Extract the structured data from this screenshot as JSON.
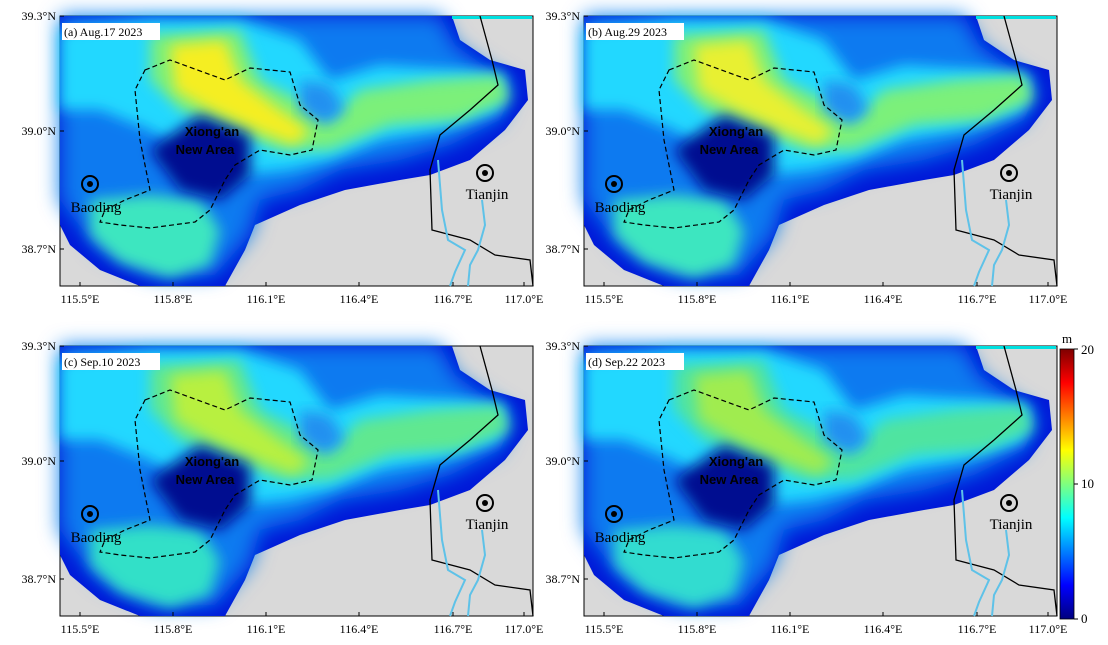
{
  "panels": [
    {
      "label": "(a) Aug.17 2023",
      "intensity": 1.0
    },
    {
      "label": "(b) Aug.29 2023",
      "intensity": 0.94
    },
    {
      "label": "(c) Sep.10 2023",
      "intensity": 0.86
    },
    {
      "label": "(d) Sep.22 2023",
      "intensity": 0.82
    }
  ],
  "axes": {
    "lon_ticks": [
      "115.5°E",
      "115.8°E",
      "116.1°E",
      "116.4°E",
      "116.7°E",
      "117.0°E"
    ],
    "lat_ticks": [
      "39.3°N",
      "39.0°N",
      "38.7°N"
    ]
  },
  "places": {
    "xiongan_line1": "Xiong'an",
    "xiongan_line2": "New Area",
    "baoding": "Baoding",
    "tianjin": "Tianjin"
  },
  "colorbar": {
    "unit": "m",
    "ticks": [
      "20",
      "10",
      "0"
    ],
    "min": 0,
    "max": 20,
    "colors": [
      "#00007f",
      "#0000ff",
      "#007fff",
      "#00ffff",
      "#7fff7f",
      "#ffff00",
      "#ff7f00",
      "#ff0000",
      "#7f0000"
    ]
  },
  "colors": {
    "background": "#d9d9d9",
    "river": "#5ec2e8",
    "boundary": "#000000"
  }
}
